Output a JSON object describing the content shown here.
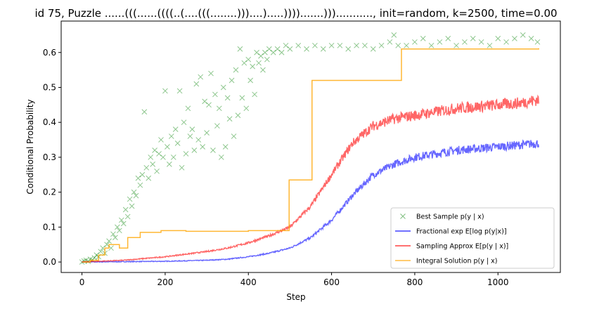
{
  "chart_data": {
    "type": "line",
    "title": "id 75, Puzzle ......(((......((((..(....(((........)))....).....)))).......)))..........., init=random, k=2500, time=0.00",
    "xlabel": "Step",
    "ylabel": "Conditional Probability",
    "xlim": [
      -50,
      1150
    ],
    "ylim": [
      -0.03,
      0.69
    ],
    "x_ticks": [
      0,
      200,
      400,
      600,
      800,
      1000
    ],
    "y_ticks": [
      0.0,
      0.1,
      0.2,
      0.3,
      0.4,
      0.5,
      0.6
    ],
    "grid": false,
    "legend_position": "lower-right",
    "series": [
      {
        "name": "Best Sample p(y | x)",
        "kind": "scatter",
        "marker": "x",
        "color": "#008000",
        "points": [
          [
            0,
            0.0
          ],
          [
            5,
            0.003
          ],
          [
            10,
            0.005
          ],
          [
            15,
            0.002
          ],
          [
            20,
            0.008
          ],
          [
            25,
            0.006
          ],
          [
            30,
            0.012
          ],
          [
            35,
            0.02
          ],
          [
            40,
            0.015
          ],
          [
            45,
            0.03
          ],
          [
            50,
            0.04
          ],
          [
            55,
            0.025
          ],
          [
            60,
            0.05
          ],
          [
            65,
            0.06
          ],
          [
            70,
            0.04
          ],
          [
            75,
            0.08
          ],
          [
            80,
            0.07
          ],
          [
            85,
            0.1
          ],
          [
            90,
            0.09
          ],
          [
            95,
            0.12
          ],
          [
            100,
            0.11
          ],
          [
            105,
            0.15
          ],
          [
            110,
            0.13
          ],
          [
            115,
            0.18
          ],
          [
            120,
            0.16
          ],
          [
            125,
            0.2
          ],
          [
            130,
            0.19
          ],
          [
            135,
            0.24
          ],
          [
            140,
            0.22
          ],
          [
            145,
            0.25
          ],
          [
            150,
            0.43
          ],
          [
            155,
            0.27
          ],
          [
            160,
            0.24
          ],
          [
            165,
            0.3
          ],
          [
            170,
            0.28
          ],
          [
            175,
            0.32
          ],
          [
            180,
            0.26
          ],
          [
            185,
            0.31
          ],
          [
            190,
            0.35
          ],
          [
            195,
            0.3
          ],
          [
            200,
            0.49
          ],
          [
            205,
            0.33
          ],
          [
            210,
            0.28
          ],
          [
            215,
            0.36
          ],
          [
            220,
            0.3
          ],
          [
            225,
            0.38
          ],
          [
            230,
            0.34
          ],
          [
            235,
            0.49
          ],
          [
            240,
            0.27
          ],
          [
            245,
            0.4
          ],
          [
            250,
            0.31
          ],
          [
            255,
            0.44
          ],
          [
            260,
            0.36
          ],
          [
            265,
            0.38
          ],
          [
            270,
            0.32
          ],
          [
            275,
            0.51
          ],
          [
            280,
            0.35
          ],
          [
            285,
            0.53
          ],
          [
            290,
            0.33
          ],
          [
            295,
            0.46
          ],
          [
            300,
            0.37
          ],
          [
            305,
            0.45
          ],
          [
            310,
            0.54
          ],
          [
            315,
            0.32
          ],
          [
            320,
            0.48
          ],
          [
            325,
            0.39
          ],
          [
            330,
            0.44
          ],
          [
            335,
            0.3
          ],
          [
            340,
            0.5
          ],
          [
            345,
            0.33
          ],
          [
            350,
            0.47
          ],
          [
            355,
            0.41
          ],
          [
            360,
            0.52
          ],
          [
            365,
            0.36
          ],
          [
            370,
            0.55
          ],
          [
            375,
            0.42
          ],
          [
            380,
            0.61
          ],
          [
            385,
            0.47
          ],
          [
            390,
            0.57
          ],
          [
            395,
            0.44
          ],
          [
            400,
            0.58
          ],
          [
            405,
            0.52
          ],
          [
            410,
            0.56
          ],
          [
            415,
            0.48
          ],
          [
            420,
            0.6
          ],
          [
            425,
            0.57
          ],
          [
            430,
            0.59
          ],
          [
            435,
            0.55
          ],
          [
            440,
            0.6
          ],
          [
            445,
            0.58
          ],
          [
            450,
            0.61
          ],
          [
            460,
            0.6
          ],
          [
            470,
            0.61
          ],
          [
            480,
            0.6
          ],
          [
            490,
            0.62
          ],
          [
            500,
            0.61
          ],
          [
            520,
            0.62
          ],
          [
            540,
            0.61
          ],
          [
            560,
            0.62
          ],
          [
            580,
            0.61
          ],
          [
            600,
            0.62
          ],
          [
            620,
            0.62
          ],
          [
            640,
            0.61
          ],
          [
            660,
            0.62
          ],
          [
            680,
            0.62
          ],
          [
            700,
            0.61
          ],
          [
            720,
            0.62
          ],
          [
            740,
            0.63
          ],
          [
            750,
            0.65
          ],
          [
            760,
            0.62
          ],
          [
            780,
            0.62
          ],
          [
            800,
            0.63
          ],
          [
            820,
            0.64
          ],
          [
            840,
            0.62
          ],
          [
            860,
            0.63
          ],
          [
            880,
            0.64
          ],
          [
            900,
            0.62
          ],
          [
            920,
            0.63
          ],
          [
            940,
            0.64
          ],
          [
            960,
            0.63
          ],
          [
            980,
            0.62
          ],
          [
            1000,
            0.64
          ],
          [
            1020,
            0.63
          ],
          [
            1040,
            0.64
          ],
          [
            1060,
            0.65
          ],
          [
            1080,
            0.64
          ],
          [
            1095,
            0.63
          ]
        ]
      },
      {
        "name": "Fractional exp E[log p(y|x)]",
        "kind": "line",
        "color": "#0000ff",
        "points": [
          [
            0,
            0.0
          ],
          [
            100,
            0.001
          ],
          [
            200,
            0.002
          ],
          [
            300,
            0.005
          ],
          [
            350,
            0.008
          ],
          [
            400,
            0.015
          ],
          [
            450,
            0.025
          ],
          [
            500,
            0.04
          ],
          [
            550,
            0.07
          ],
          [
            600,
            0.12
          ],
          [
            650,
            0.19
          ],
          [
            700,
            0.25
          ],
          [
            750,
            0.28
          ],
          [
            800,
            0.3
          ],
          [
            850,
            0.31
          ],
          [
            900,
            0.32
          ],
          [
            950,
            0.325
          ],
          [
            1000,
            0.33
          ],
          [
            1050,
            0.335
          ],
          [
            1098,
            0.34
          ]
        ]
      },
      {
        "name": "Sampling Approx E[p(y | x)]",
        "kind": "line",
        "color": "#ff0000",
        "points": [
          [
            0,
            0.0
          ],
          [
            100,
            0.005
          ],
          [
            200,
            0.015
          ],
          [
            300,
            0.03
          ],
          [
            350,
            0.04
          ],
          [
            400,
            0.055
          ],
          [
            450,
            0.075
          ],
          [
            500,
            0.1
          ],
          [
            550,
            0.16
          ],
          [
            600,
            0.25
          ],
          [
            650,
            0.34
          ],
          [
            700,
            0.39
          ],
          [
            750,
            0.41
          ],
          [
            800,
            0.42
          ],
          [
            850,
            0.43
          ],
          [
            900,
            0.44
          ],
          [
            950,
            0.445
          ],
          [
            1000,
            0.45
          ],
          [
            1050,
            0.455
          ],
          [
            1098,
            0.465
          ]
        ]
      },
      {
        "name": "Integral Solution p(y | x)",
        "kind": "step",
        "color": "#ffa500",
        "points": [
          [
            0,
            0.0
          ],
          [
            20,
            0.005
          ],
          [
            40,
            0.02
          ],
          [
            55,
            0.04
          ],
          [
            65,
            0.05
          ],
          [
            90,
            0.04
          ],
          [
            110,
            0.07
          ],
          [
            140,
            0.085
          ],
          [
            190,
            0.09
          ],
          [
            250,
            0.088
          ],
          [
            400,
            0.09
          ],
          [
            480,
            0.09
          ],
          [
            498,
            0.235
          ],
          [
            553,
            0.52
          ],
          [
            768,
            0.61
          ],
          [
            1098,
            0.612
          ]
        ]
      }
    ]
  }
}
